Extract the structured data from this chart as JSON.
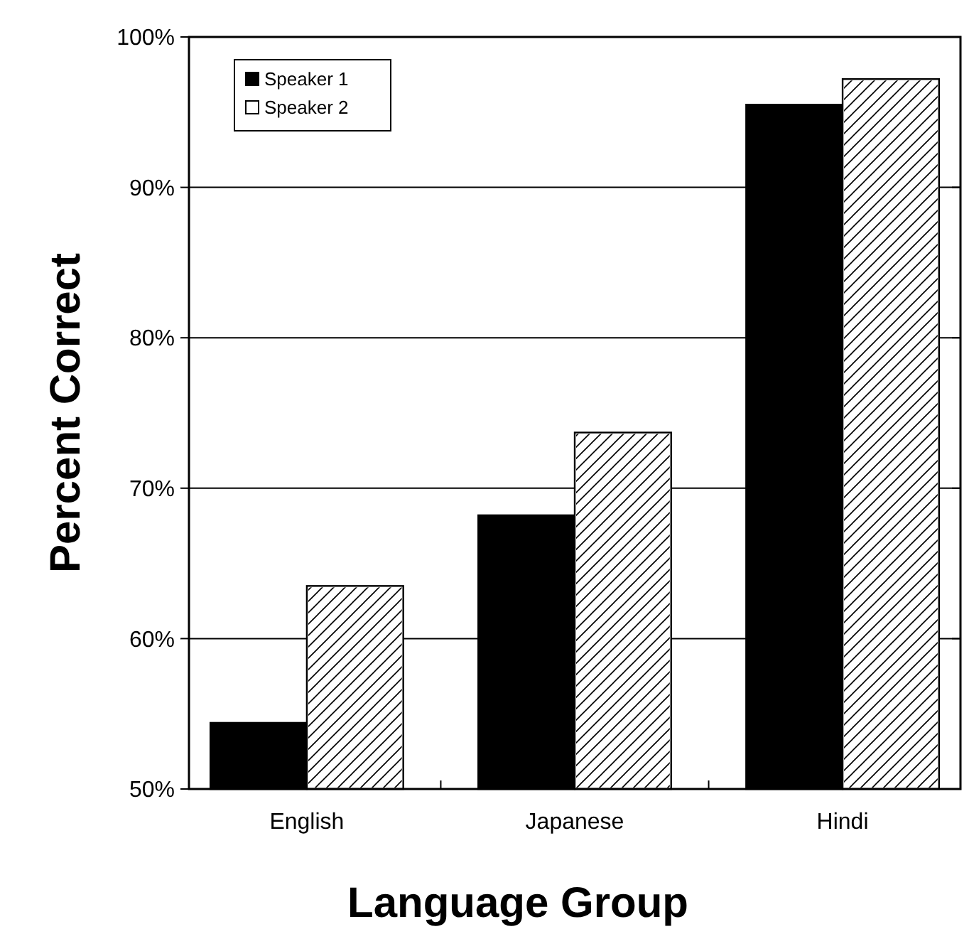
{
  "chart_data": {
    "type": "bar",
    "xlabel": "Language Group",
    "ylabel": "Percent Correct",
    "categories": [
      "English",
      "Japanese",
      "Hindi"
    ],
    "series": [
      {
        "name": "Speaker 1",
        "color": "#000000",
        "values": [
          54.4,
          68.2,
          95.5
        ]
      },
      {
        "name": "Speaker 2",
        "color": "#ffffff",
        "values": [
          63.5,
          73.7,
          97.2
        ]
      }
    ],
    "ylim": [
      50,
      100
    ],
    "yticks": [
      {
        "value": 50,
        "label": "50%"
      },
      {
        "value": 60,
        "label": "60%"
      },
      {
        "value": 70,
        "label": "70%"
      },
      {
        "value": 80,
        "label": "80%"
      },
      {
        "value": 90,
        "label": "90%"
      },
      {
        "value": 100,
        "label": "100%"
      }
    ],
    "grid": "y",
    "legend": "top left"
  }
}
